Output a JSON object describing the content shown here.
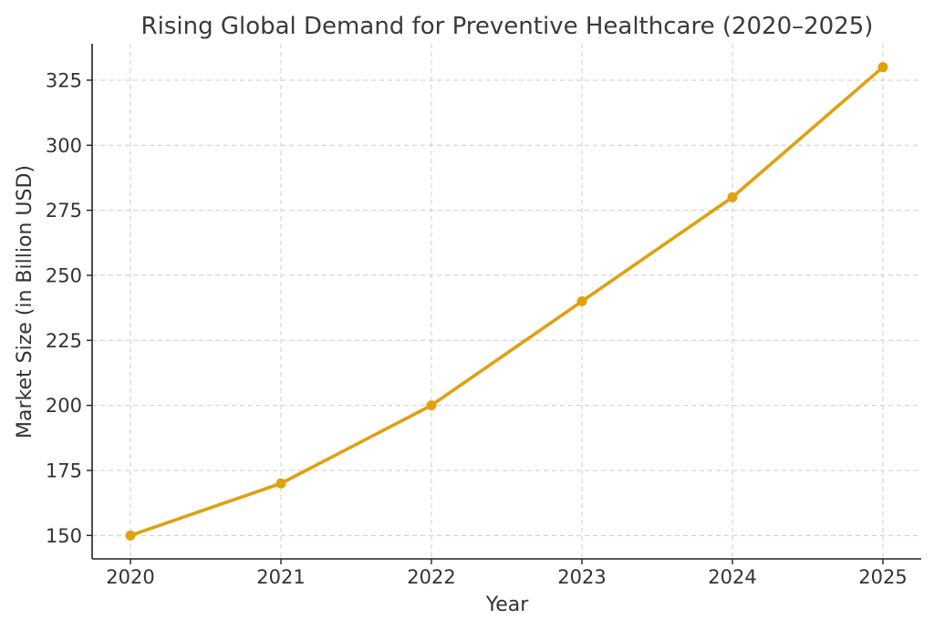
{
  "chart_data": {
    "type": "line",
    "title": "Rising Global Demand for Preventive Healthcare (2020–2025)",
    "xlabel": "Year",
    "ylabel": "Market Size (in Billion USD)",
    "categories": [
      "2020",
      "2021",
      "2022",
      "2023",
      "2024",
      "2025"
    ],
    "series": [
      {
        "values": [
          150,
          170,
          200,
          240,
          280,
          330
        ]
      }
    ],
    "yticks": [
      150,
      175,
      200,
      225,
      250,
      275,
      300,
      325
    ],
    "ylim": [
      141,
      339
    ],
    "grid": true,
    "line_color": "#e0a010",
    "marker": "circle"
  }
}
